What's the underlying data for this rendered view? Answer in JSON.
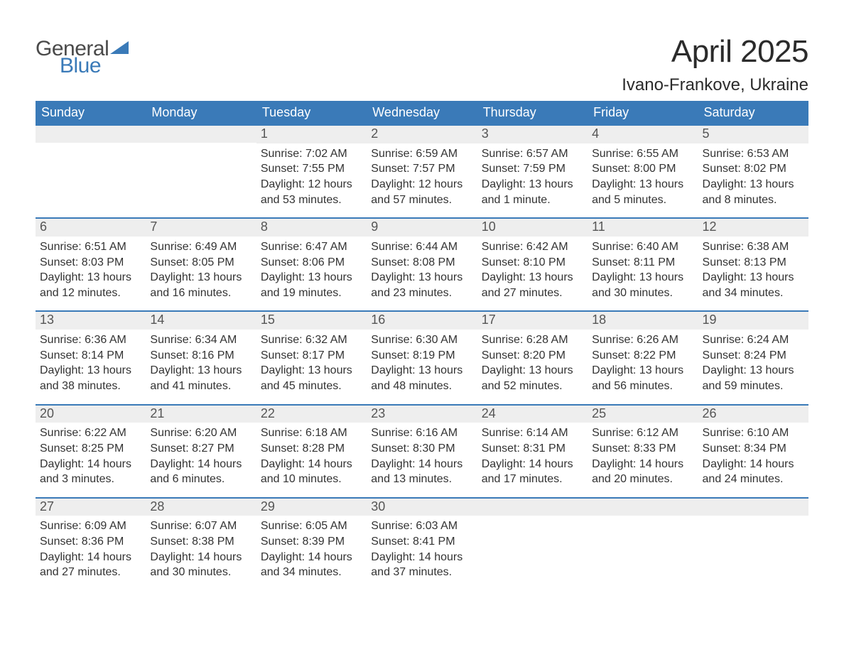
{
  "logo": {
    "text1": "General",
    "text2": "Blue",
    "shape_color": "#3a7ab8"
  },
  "title": "April 2025",
  "location": "Ivano-Frankove, Ukraine",
  "colors": {
    "header_bg": "#3a7ab8",
    "header_text": "#ffffff",
    "daynum_bg": "#eeeeee",
    "daynum_text": "#555555",
    "body_text": "#333333",
    "week_border": "#3a7ab8"
  },
  "day_names": [
    "Sunday",
    "Monday",
    "Tuesday",
    "Wednesday",
    "Thursday",
    "Friday",
    "Saturday"
  ],
  "weeks": [
    [
      {
        "day": "",
        "sunrise": "",
        "sunset": "",
        "daylight": ""
      },
      {
        "day": "",
        "sunrise": "",
        "sunset": "",
        "daylight": ""
      },
      {
        "day": "1",
        "sunrise": "Sunrise: 7:02 AM",
        "sunset": "Sunset: 7:55 PM",
        "daylight": "Daylight: 12 hours and 53 minutes."
      },
      {
        "day": "2",
        "sunrise": "Sunrise: 6:59 AM",
        "sunset": "Sunset: 7:57 PM",
        "daylight": "Daylight: 12 hours and 57 minutes."
      },
      {
        "day": "3",
        "sunrise": "Sunrise: 6:57 AM",
        "sunset": "Sunset: 7:59 PM",
        "daylight": "Daylight: 13 hours and 1 minute."
      },
      {
        "day": "4",
        "sunrise": "Sunrise: 6:55 AM",
        "sunset": "Sunset: 8:00 PM",
        "daylight": "Daylight: 13 hours and 5 minutes."
      },
      {
        "day": "5",
        "sunrise": "Sunrise: 6:53 AM",
        "sunset": "Sunset: 8:02 PM",
        "daylight": "Daylight: 13 hours and 8 minutes."
      }
    ],
    [
      {
        "day": "6",
        "sunrise": "Sunrise: 6:51 AM",
        "sunset": "Sunset: 8:03 PM",
        "daylight": "Daylight: 13 hours and 12 minutes."
      },
      {
        "day": "7",
        "sunrise": "Sunrise: 6:49 AM",
        "sunset": "Sunset: 8:05 PM",
        "daylight": "Daylight: 13 hours and 16 minutes."
      },
      {
        "day": "8",
        "sunrise": "Sunrise: 6:47 AM",
        "sunset": "Sunset: 8:06 PM",
        "daylight": "Daylight: 13 hours and 19 minutes."
      },
      {
        "day": "9",
        "sunrise": "Sunrise: 6:44 AM",
        "sunset": "Sunset: 8:08 PM",
        "daylight": "Daylight: 13 hours and 23 minutes."
      },
      {
        "day": "10",
        "sunrise": "Sunrise: 6:42 AM",
        "sunset": "Sunset: 8:10 PM",
        "daylight": "Daylight: 13 hours and 27 minutes."
      },
      {
        "day": "11",
        "sunrise": "Sunrise: 6:40 AM",
        "sunset": "Sunset: 8:11 PM",
        "daylight": "Daylight: 13 hours and 30 minutes."
      },
      {
        "day": "12",
        "sunrise": "Sunrise: 6:38 AM",
        "sunset": "Sunset: 8:13 PM",
        "daylight": "Daylight: 13 hours and 34 minutes."
      }
    ],
    [
      {
        "day": "13",
        "sunrise": "Sunrise: 6:36 AM",
        "sunset": "Sunset: 8:14 PM",
        "daylight": "Daylight: 13 hours and 38 minutes."
      },
      {
        "day": "14",
        "sunrise": "Sunrise: 6:34 AM",
        "sunset": "Sunset: 8:16 PM",
        "daylight": "Daylight: 13 hours and 41 minutes."
      },
      {
        "day": "15",
        "sunrise": "Sunrise: 6:32 AM",
        "sunset": "Sunset: 8:17 PM",
        "daylight": "Daylight: 13 hours and 45 minutes."
      },
      {
        "day": "16",
        "sunrise": "Sunrise: 6:30 AM",
        "sunset": "Sunset: 8:19 PM",
        "daylight": "Daylight: 13 hours and 48 minutes."
      },
      {
        "day": "17",
        "sunrise": "Sunrise: 6:28 AM",
        "sunset": "Sunset: 8:20 PM",
        "daylight": "Daylight: 13 hours and 52 minutes."
      },
      {
        "day": "18",
        "sunrise": "Sunrise: 6:26 AM",
        "sunset": "Sunset: 8:22 PM",
        "daylight": "Daylight: 13 hours and 56 minutes."
      },
      {
        "day": "19",
        "sunrise": "Sunrise: 6:24 AM",
        "sunset": "Sunset: 8:24 PM",
        "daylight": "Daylight: 13 hours and 59 minutes."
      }
    ],
    [
      {
        "day": "20",
        "sunrise": "Sunrise: 6:22 AM",
        "sunset": "Sunset: 8:25 PM",
        "daylight": "Daylight: 14 hours and 3 minutes."
      },
      {
        "day": "21",
        "sunrise": "Sunrise: 6:20 AM",
        "sunset": "Sunset: 8:27 PM",
        "daylight": "Daylight: 14 hours and 6 minutes."
      },
      {
        "day": "22",
        "sunrise": "Sunrise: 6:18 AM",
        "sunset": "Sunset: 8:28 PM",
        "daylight": "Daylight: 14 hours and 10 minutes."
      },
      {
        "day": "23",
        "sunrise": "Sunrise: 6:16 AM",
        "sunset": "Sunset: 8:30 PM",
        "daylight": "Daylight: 14 hours and 13 minutes."
      },
      {
        "day": "24",
        "sunrise": "Sunrise: 6:14 AM",
        "sunset": "Sunset: 8:31 PM",
        "daylight": "Daylight: 14 hours and 17 minutes."
      },
      {
        "day": "25",
        "sunrise": "Sunrise: 6:12 AM",
        "sunset": "Sunset: 8:33 PM",
        "daylight": "Daylight: 14 hours and 20 minutes."
      },
      {
        "day": "26",
        "sunrise": "Sunrise: 6:10 AM",
        "sunset": "Sunset: 8:34 PM",
        "daylight": "Daylight: 14 hours and 24 minutes."
      }
    ],
    [
      {
        "day": "27",
        "sunrise": "Sunrise: 6:09 AM",
        "sunset": "Sunset: 8:36 PM",
        "daylight": "Daylight: 14 hours and 27 minutes."
      },
      {
        "day": "28",
        "sunrise": "Sunrise: 6:07 AM",
        "sunset": "Sunset: 8:38 PM",
        "daylight": "Daylight: 14 hours and 30 minutes."
      },
      {
        "day": "29",
        "sunrise": "Sunrise: 6:05 AM",
        "sunset": "Sunset: 8:39 PM",
        "daylight": "Daylight: 14 hours and 34 minutes."
      },
      {
        "day": "30",
        "sunrise": "Sunrise: 6:03 AM",
        "sunset": "Sunset: 8:41 PM",
        "daylight": "Daylight: 14 hours and 37 minutes."
      },
      {
        "day": "",
        "sunrise": "",
        "sunset": "",
        "daylight": ""
      },
      {
        "day": "",
        "sunrise": "",
        "sunset": "",
        "daylight": ""
      },
      {
        "day": "",
        "sunrise": "",
        "sunset": "",
        "daylight": ""
      }
    ]
  ]
}
